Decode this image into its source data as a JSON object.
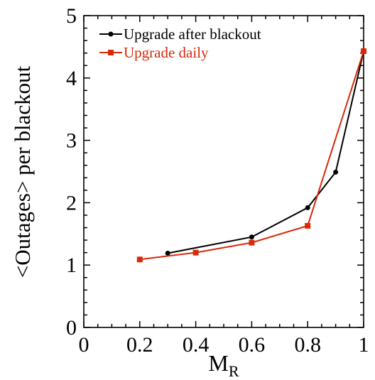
{
  "chart_data": {
    "type": "line",
    "title": "",
    "xlabel": "M",
    "xlabel_subscript": "R",
    "ylabel": "<Outages> per blackout",
    "xlim": [
      0,
      1
    ],
    "ylim": [
      0,
      5
    ],
    "x_ticks": [
      0,
      0.2,
      0.4,
      0.6,
      0.8,
      1
    ],
    "x_tick_labels": [
      "0",
      "0.2",
      "0.4",
      "0.6",
      "0.8",
      "1"
    ],
    "y_ticks": [
      0,
      1,
      2,
      3,
      4,
      5
    ],
    "y_tick_labels": [
      "0",
      "1",
      "2",
      "3",
      "4",
      "5"
    ],
    "legend_position": "top-left",
    "grid": false,
    "series": [
      {
        "name": "Upgrade after blackout",
        "color": "#000000",
        "marker": "circle",
        "x": [
          0.3,
          0.6,
          0.8,
          0.9,
          1.0
        ],
        "y": [
          1.19,
          1.45,
          1.92,
          2.49,
          4.43
        ]
      },
      {
        "name": "Upgrade daily",
        "color": "#d62a0a",
        "marker": "square",
        "x": [
          0.2,
          0.4,
          0.6,
          0.8,
          1.0
        ],
        "y": [
          1.09,
          1.2,
          1.36,
          1.63,
          4.43
        ]
      }
    ]
  }
}
